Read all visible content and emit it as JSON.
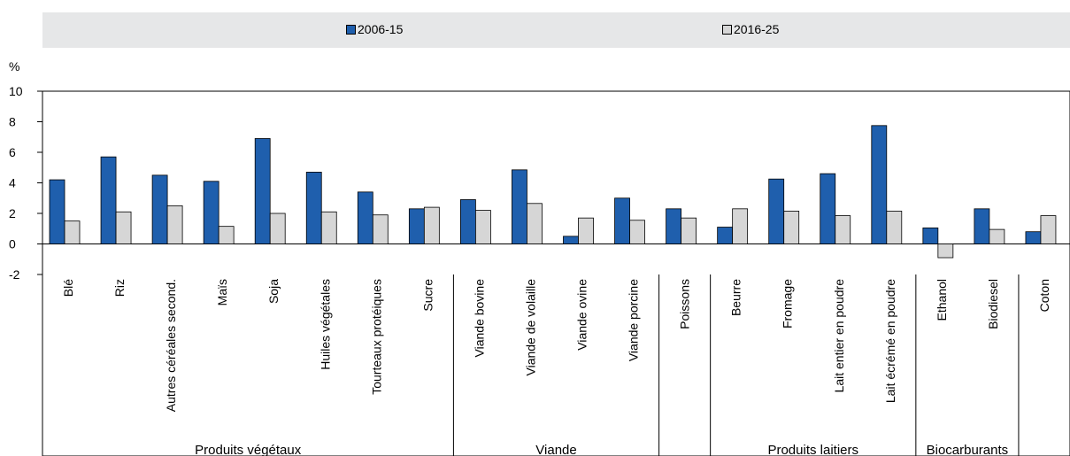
{
  "chart_data": {
    "type": "bar",
    "ylabel": "%",
    "ylim": [
      -2,
      10
    ],
    "yticks": [
      -2,
      0,
      2,
      4,
      6,
      8,
      10
    ],
    "grid": false,
    "legend_position": "top",
    "categories": [
      "Blé",
      "Riz",
      "Autres céréales second.",
      "Maïs",
      "Soja",
      "Huiles végétales",
      "Tourteaux protéiques",
      "Sucre",
      "Viande bovine",
      "Viande de volaille",
      "Viande ovine",
      "Viande porcine",
      "Poissons",
      "Beurre",
      "Fromage",
      "Lait entier en poudre",
      "Lait écrémé en poudre",
      "Ethanol",
      "Biodiesel",
      "Coton"
    ],
    "groups": [
      {
        "name": "Produits végétaux",
        "size": 8
      },
      {
        "name": "Viande",
        "size": 4
      },
      {
        "name": "",
        "size": 1
      },
      {
        "name": "Produits laitiers",
        "size": 4
      },
      {
        "name": "Biocarburants",
        "size": 2
      },
      {
        "name": "",
        "size": 1
      }
    ],
    "series": [
      {
        "name": "2006-15",
        "color": "#1f5fad",
        "values": [
          4.2,
          5.7,
          4.5,
          4.1,
          6.9,
          4.7,
          3.4,
          2.3,
          2.9,
          4.85,
          0.5,
          3.0,
          2.3,
          1.1,
          4.25,
          4.6,
          7.75,
          1.05,
          2.3,
          0.8
        ]
      },
      {
        "name": "2016-25",
        "color": "#d6d6d6",
        "values": [
          1.5,
          2.1,
          2.5,
          1.15,
          2.0,
          2.1,
          1.9,
          2.4,
          2.2,
          2.65,
          1.7,
          1.55,
          1.7,
          2.3,
          2.15,
          1.85,
          2.15,
          -0.9,
          0.95,
          1.85
        ]
      }
    ]
  }
}
